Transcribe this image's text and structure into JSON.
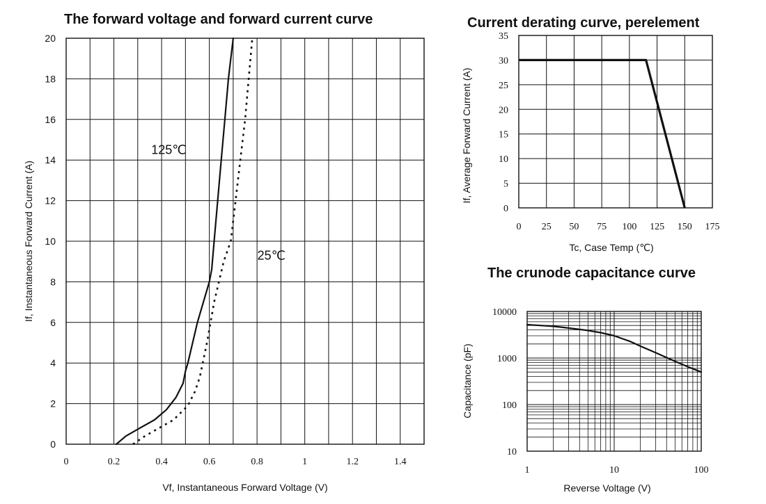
{
  "chart_data": [
    {
      "type": "line",
      "title": "The forward voltage and forward current curve",
      "xlabel": "Vf, Instantaneous Forward Voltage (V)",
      "ylabel": "If, Instantaneous Forward Current (A)",
      "xlim": [
        0,
        1.5
      ],
      "ylim": [
        0,
        20
      ],
      "x_ticks": [
        0,
        0.2,
        0.4,
        0.6,
        0.8,
        1,
        1.2,
        1.4
      ],
      "x_tick_labels": [
        "0",
        "0.2",
        "0.4",
        "0.6",
        "0.8",
        "1",
        "1.2",
        "1.4"
      ],
      "y_ticks": [
        0,
        2,
        4,
        6,
        8,
        10,
        12,
        14,
        16,
        18,
        20
      ],
      "y_tick_labels": [
        "0",
        "2",
        "4",
        "6",
        "8",
        "10",
        "12",
        "14",
        "16",
        "18",
        "20"
      ],
      "grid": true,
      "series": [
        {
          "name": "125℃",
          "style": "solid",
          "x": [
            0.21,
            0.25,
            0.31,
            0.37,
            0.42,
            0.46,
            0.49,
            0.5,
            0.51,
            0.55,
            0.6,
            0.61,
            0.62,
            0.635,
            0.65,
            0.665,
            0.68,
            0.7
          ],
          "y": [
            0,
            0.4,
            0.8,
            1.2,
            1.7,
            2.3,
            3.0,
            3.6,
            4.0,
            6.0,
            8.0,
            8.6,
            10.0,
            12.0,
            14.0,
            16.0,
            18.0,
            20.0
          ]
        },
        {
          "name": "25℃",
          "style": "dotted",
          "x": [
            0.28,
            0.33,
            0.39,
            0.45,
            0.51,
            0.54,
            0.56,
            0.59,
            0.62,
            0.66,
            0.69,
            0.71,
            0.73,
            0.75,
            0.765,
            0.78
          ],
          "y": [
            0,
            0.4,
            0.8,
            1.2,
            1.9,
            2.6,
            3.3,
            5.0,
            7.0,
            9.0,
            10.0,
            12.0,
            14.0,
            16.0,
            18.0,
            20.0
          ]
        }
      ],
      "annotations": [
        {
          "text": "125℃",
          "x": 0.43,
          "y": 14.3
        },
        {
          "text": "25℃",
          "x": 0.86,
          "y": 9.1
        }
      ]
    },
    {
      "type": "line",
      "title": "Current derating curve, perelement",
      "xlabel": "Tc, Case Temp (℃)",
      "ylabel": "If, Average Forward Current (A)",
      "xlim": [
        0,
        175
      ],
      "ylim": [
        0,
        35
      ],
      "x_ticks": [
        0,
        25,
        50,
        75,
        100,
        125,
        150,
        175
      ],
      "x_tick_labels": [
        "0",
        "25",
        "50",
        "75",
        "100",
        "125",
        "150",
        "175"
      ],
      "y_ticks": [
        0,
        5,
        10,
        15,
        20,
        25,
        30,
        35
      ],
      "y_tick_labels": [
        "0",
        "5",
        "10",
        "15",
        "20",
        "25",
        "30",
        "35"
      ],
      "grid": true,
      "series": [
        {
          "name": "derating",
          "style": "bold",
          "x": [
            0,
            115,
            150
          ],
          "y": [
            30,
            30,
            0
          ]
        }
      ]
    },
    {
      "type": "line",
      "title": "The crunode capacitance curve",
      "xlabel": "Reverse Voltage (V)",
      "ylabel": "Capacitance (pF)",
      "xscale": "log",
      "yscale": "log",
      "xlim": [
        1,
        100
      ],
      "ylim": [
        10,
        10000
      ],
      "x_ticks": [
        1,
        10,
        100
      ],
      "x_tick_labels": [
        "1",
        "10",
        "100"
      ],
      "y_ticks": [
        10,
        100,
        1000,
        10000
      ],
      "y_tick_labels": [
        "10",
        "100",
        "1000",
        "10000"
      ],
      "grid": true,
      "series": [
        {
          "name": "capacitance",
          "style": "solid",
          "x": [
            1,
            2,
            3,
            5,
            7,
            10,
            15,
            20,
            30,
            50,
            70,
            100
          ],
          "y": [
            5200,
            4800,
            4400,
            3900,
            3500,
            3000,
            2300,
            1800,
            1300,
            850,
            650,
            500
          ]
        }
      ]
    }
  ]
}
